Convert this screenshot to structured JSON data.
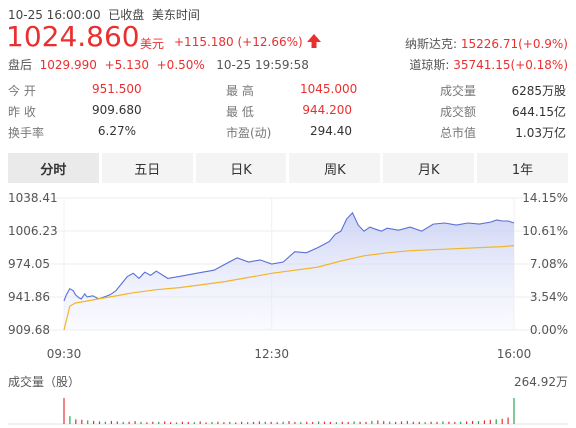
{
  "header": {
    "datetime": "10-25 16:00:00",
    "status": "已收盘",
    "timezone": "美东时间",
    "price": "1024.860",
    "currency": "美元",
    "change": "+115.180 (+12.66%)",
    "after_hours_label": "盘后",
    "after_hours_price": "1029.990",
    "after_hours_change": "+5.130",
    "after_hours_pct": "+0.50%",
    "after_hours_time": "10-25 19:59:58",
    "up_color": "#e93030"
  },
  "indices": [
    {
      "name": "纳斯达克:",
      "value": "15226.71(+0.9%)"
    },
    {
      "name": "道琼斯:",
      "value": "35741.15(+0.18%)"
    }
  ],
  "stats": {
    "open_label": "今    开",
    "open": "951.500",
    "prev_label": "昨    收",
    "prev": "909.680",
    "turnover_label": "换手率",
    "turnover": "6.27%",
    "high_label": "最    高",
    "high": "1045.000",
    "low_label": "最    低",
    "low": "944.200",
    "pe_label": "市盈(动)",
    "pe": "294.40",
    "volume_label": "成交量",
    "volume": "6285万股",
    "amount_label": "成交额",
    "amount": "644.15亿",
    "mcap_label": "总市值",
    "mcap": "1.03万亿"
  },
  "tabs": [
    "分时",
    "五日",
    "日K",
    "周K",
    "月K",
    "1年"
  ],
  "active_tab": "分时",
  "chart_data": {
    "type": "line",
    "title": "",
    "x_ticks": [
      "09:30",
      "12:30",
      "16:00"
    ],
    "y_ticks_left": [
      "1038.41",
      "1006.23",
      "974.05",
      "941.86",
      "909.68"
    ],
    "y_ticks_right": [
      "14.15%",
      "10.61%",
      "7.08%",
      "3.54%",
      "0.00%"
    ],
    "ylim": [
      909.68,
      1038.41
    ],
    "series": [
      {
        "name": "",
        "color": "#5b6fd6",
        "x": [
          0,
          2,
          5,
          8,
          10,
          13,
          15,
          18,
          20,
          25,
          30,
          35,
          40,
          45,
          50,
          55,
          60,
          65,
          70,
          75,
          80,
          90,
          100,
          110,
          120,
          130,
          140,
          150,
          160,
          170,
          180,
          190,
          200,
          210,
          220,
          230,
          235,
          240,
          245,
          250,
          255,
          260,
          265,
          270,
          275,
          280,
          290,
          300,
          310,
          320,
          330,
          340,
          350,
          360,
          370,
          375,
          380,
          385,
          390
        ],
        "y": [
          938,
          944,
          950,
          948,
          944,
          941,
          940,
          945,
          942,
          943,
          940,
          942,
          944,
          948,
          955,
          962,
          965,
          960,
          966,
          963,
          967,
          960,
          962,
          964,
          966,
          968,
          974,
          980,
          976,
          978,
          974,
          976,
          986,
          985,
          990,
          996,
          1003,
          1006,
          1018,
          1024,
          1012,
          1006,
          1010,
          1008,
          1006,
          1009,
          1007,
          1010,
          1006,
          1013,
          1014,
          1012,
          1014,
          1013,
          1015,
          1017,
          1016,
          1016,
          1014
        ]
      },
      {
        "name": "",
        "color": "#f2b52b",
        "x": [
          0,
          5,
          10,
          20,
          30,
          40,
          60,
          80,
          100,
          120,
          140,
          160,
          180,
          200,
          220,
          240,
          260,
          280,
          300,
          320,
          340,
          360,
          380,
          390
        ],
        "y": [
          909.68,
          933,
          936,
          938,
          940,
          942,
          946,
          949,
          951,
          954,
          957,
          961,
          965,
          968,
          971,
          977,
          982,
          985,
          987,
          988,
          989,
          990,
          991,
          992
        ]
      }
    ],
    "volume": {
      "label": "成交量（股）",
      "max_label": "264.92万",
      "values": [
        100,
        30,
        18,
        16,
        14,
        12,
        10,
        9,
        12,
        10,
        8,
        9,
        11,
        8,
        7,
        9,
        8,
        10,
        7,
        6,
        9,
        8,
        7,
        10,
        6,
        8,
        9,
        7,
        8,
        6,
        9,
        7,
        8,
        10,
        9,
        8,
        7,
        9,
        11,
        8,
        7,
        9,
        8,
        10,
        9,
        8,
        7,
        9,
        8,
        10,
        9,
        8,
        12,
        14,
        11,
        9,
        8,
        10,
        12,
        9,
        8,
        7,
        9,
        8,
        10,
        9,
        8,
        9,
        10,
        12,
        11,
        14,
        16,
        18,
        20,
        25,
        100
      ]
    }
  }
}
